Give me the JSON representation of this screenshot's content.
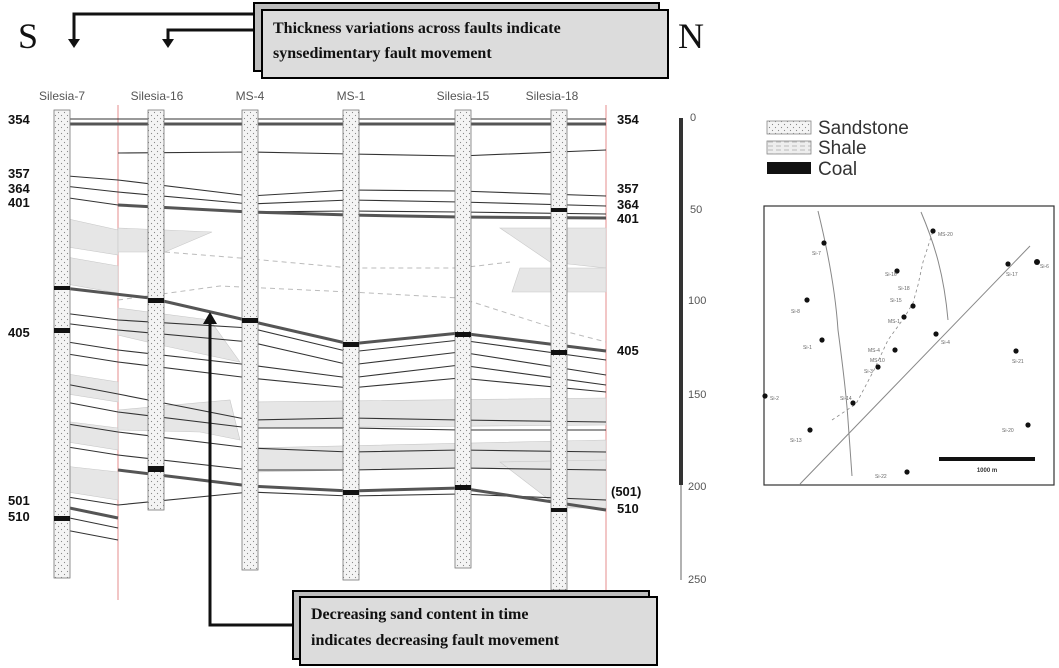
{
  "direction": {
    "south": "S",
    "north": "N"
  },
  "callouts": {
    "top": [
      "Thickness variations across faults indicate",
      "synsedimentary fault movement"
    ],
    "bottom": [
      "Decreasing sand content in time",
      "indicates decreasing fault movement"
    ]
  },
  "wells": [
    "Silesia-7",
    "Silesia-16",
    "MS-4",
    "MS-1",
    "Silesia-15",
    "Silesia-18"
  ],
  "horizons_left": [
    "354",
    "357",
    "364",
    "401",
    "405",
    "501",
    "510"
  ],
  "horizons_right": [
    "354",
    "357",
    "364",
    "401",
    "405",
    "(501)",
    "510"
  ],
  "depth_scale": {
    "ticks": [
      "0",
      "50",
      "100",
      "150",
      "200",
      "250"
    ]
  },
  "legend": [
    {
      "label": "Sandstone",
      "pattern": "sandstone"
    },
    {
      "label": "Shale",
      "pattern": "shale"
    },
    {
      "label": "Coal",
      "pattern": "coal"
    }
  ],
  "map": {
    "well_labels": [
      "Si-7",
      "Si-16",
      "MS-4",
      "MS-1",
      "Si-15",
      "Si-18",
      "MS-20",
      "Si-8",
      "Si-1",
      "Si-3",
      "Si-13",
      "Si-17",
      "Si-21",
      "Si-20",
      "Si-14",
      "Si-4",
      "MS-10",
      "Si-2",
      "Si-6",
      "Si-22"
    ],
    "scale_bar": "1000 m"
  },
  "colors": {
    "boundary": "#e8a0a0",
    "shale_fill": "#e6e6e6",
    "coal": "#111111"
  }
}
